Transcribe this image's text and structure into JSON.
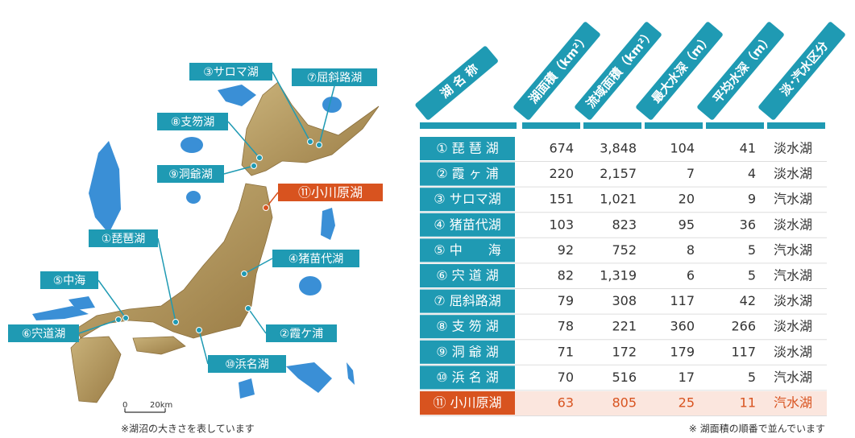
{
  "map": {
    "labels": [
      {
        "text": "③サロマ湖",
        "highlight": false
      },
      {
        "text": "⑦屈斜路湖",
        "highlight": false
      },
      {
        "text": "⑧支笏湖",
        "highlight": false
      },
      {
        "text": "⑨洞爺湖",
        "highlight": false
      },
      {
        "text": "⑪小川原湖",
        "highlight": true
      },
      {
        "text": "①琵琶湖",
        "highlight": false
      },
      {
        "text": "④猪苗代湖",
        "highlight": false
      },
      {
        "text": "⑤中海",
        "highlight": false
      },
      {
        "text": "⑥宍道湖",
        "highlight": false
      },
      {
        "text": "②霞ケ浦",
        "highlight": false
      },
      {
        "text": "⑩浜名湖",
        "highlight": false
      }
    ],
    "scale": [
      "0",
      "20km"
    ],
    "note": "※湖沼の大きさを表しています"
  },
  "table": {
    "headers": [
      "湖 名 称",
      "湖面積（km²）",
      "流域面積（km²）",
      "最大水深（m）",
      "平均水深（m）",
      "淡･汽水区分"
    ],
    "rows": [
      [
        "① 琵 琶 湖",
        "674",
        "3,848",
        "104",
        "41",
        "淡水湖"
      ],
      [
        "② 霞 ヶ 浦",
        "220",
        "2,157",
        "7",
        "4",
        "淡水湖"
      ],
      [
        "③ サロマ湖",
        "151",
        "1,021",
        "20",
        "9",
        "汽水湖"
      ],
      [
        "④ 猪苗代湖",
        "103",
        "823",
        "95",
        "36",
        "淡水湖"
      ],
      [
        "⑤ 中　　海",
        "92",
        "752",
        "8",
        "5",
        "汽水湖"
      ],
      [
        "⑥ 宍 道 湖",
        "82",
        "1,319",
        "6",
        "5",
        "汽水湖"
      ],
      [
        "⑦ 屈斜路湖",
        "79",
        "308",
        "117",
        "42",
        "淡水湖"
      ],
      [
        "⑧ 支 笏 湖",
        "78",
        "221",
        "360",
        "266",
        "淡水湖"
      ],
      [
        "⑨ 洞 爺 湖",
        "71",
        "172",
        "179",
        "117",
        "淡水湖"
      ],
      [
        "⑩ 浜 名 湖",
        "70",
        "516",
        "17",
        "5",
        "汽水湖"
      ],
      [
        "⑪ 小川原湖",
        "63",
        "805",
        "25",
        "11",
        "汽水湖"
      ]
    ],
    "highlight_row": 10,
    "note": "※ 湖面積の順番で並んでいます"
  }
}
